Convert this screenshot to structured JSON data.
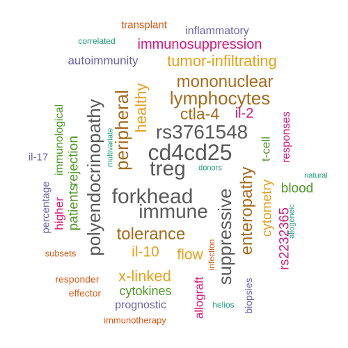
{
  "colors": {
    "gray": "#595959",
    "orange": "#e6a01a",
    "brown": "#a56b1c",
    "green": "#4e9a27",
    "magenta": "#d4177a",
    "purple": "#6e61a8",
    "red": "#d65a17",
    "teal": "#1b9a79"
  },
  "words": [
    {
      "text": "treg",
      "color": "gray"
    },
    {
      "text": "cd4cd25",
      "color": "gray"
    },
    {
      "text": "rs3761548",
      "color": "gray"
    },
    {
      "text": "forkhead",
      "color": "gray"
    },
    {
      "text": "immune",
      "color": "gray"
    },
    {
      "text": "polyendocrinopathy",
      "color": "gray"
    },
    {
      "text": "suppressive",
      "color": "gray"
    },
    {
      "text": "lymphocytes",
      "color": "brown"
    },
    {
      "text": "mononuclear",
      "color": "brown"
    },
    {
      "text": "peripheral",
      "color": "brown"
    },
    {
      "text": "tolerance",
      "color": "brown"
    },
    {
      "text": "enteropathy",
      "color": "brown"
    },
    {
      "text": "ctla-4",
      "color": "brown"
    },
    {
      "text": "tumor-infiltrating",
      "color": "orange"
    },
    {
      "text": "healthy",
      "color": "orange"
    },
    {
      "text": "il-10",
      "color": "orange"
    },
    {
      "text": "flow",
      "color": "orange"
    },
    {
      "text": "x-linked",
      "color": "orange"
    },
    {
      "text": "cytometry",
      "color": "orange"
    },
    {
      "text": "immunosuppression",
      "color": "magenta"
    },
    {
      "text": "il-2",
      "color": "magenta"
    },
    {
      "text": "rs2232365",
      "color": "magenta"
    },
    {
      "text": "responses",
      "color": "magenta"
    },
    {
      "text": "allograft",
      "color": "magenta"
    },
    {
      "text": "higher",
      "color": "magenta"
    },
    {
      "text": "blood",
      "color": "green"
    },
    {
      "text": "cytokines",
      "color": "green"
    },
    {
      "text": "rejection",
      "color": "green"
    },
    {
      "text": "patients",
      "color": "green"
    },
    {
      "text": "t-cell",
      "color": "green"
    },
    {
      "text": "immunological",
      "color": "green"
    },
    {
      "text": "autoimmunity",
      "color": "purple"
    },
    {
      "text": "inflammatory",
      "color": "purple"
    },
    {
      "text": "prognostic",
      "color": "purple"
    },
    {
      "text": "percentage",
      "color": "purple"
    },
    {
      "text": "il-17",
      "color": "purple"
    },
    {
      "text": "biopsies",
      "color": "purple"
    },
    {
      "text": "transplant",
      "color": "red"
    },
    {
      "text": "responder",
      "color": "red"
    },
    {
      "text": "effector",
      "color": "red"
    },
    {
      "text": "subsets",
      "color": "red"
    },
    {
      "text": "immunotherapy",
      "color": "red"
    },
    {
      "text": "infection",
      "color": "red"
    },
    {
      "text": "correlated",
      "color": "teal"
    },
    {
      "text": "multivariate",
      "color": "teal"
    },
    {
      "text": "donors",
      "color": "teal"
    },
    {
      "text": "natural",
      "color": "teal"
    },
    {
      "text": "allogeneic",
      "color": "teal"
    },
    {
      "text": "helios",
      "color": "teal"
    }
  ]
}
